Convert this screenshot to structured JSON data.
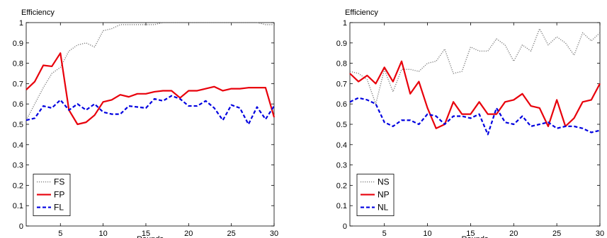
{
  "chart_data": [
    {
      "type": "line",
      "ylabel": "Efficiency",
      "xlabel": "Rounds",
      "xlim": [
        1,
        30
      ],
      "ylim": [
        0,
        1
      ],
      "xticks": [
        5,
        10,
        15,
        20,
        25,
        30
      ],
      "yticks": [
        0,
        0.1,
        0.2,
        0.3,
        0.4,
        0.5,
        0.6,
        0.7,
        0.8,
        0.9,
        1
      ],
      "grid": false,
      "legend": "bottom-left",
      "x": [
        1,
        2,
        3,
        4,
        5,
        6,
        7,
        8,
        9,
        10,
        11,
        12,
        13,
        14,
        15,
        16,
        17,
        18,
        19,
        20,
        21,
        22,
        23,
        24,
        25,
        26,
        27,
        28,
        29,
        30
      ],
      "series": [
        {
          "name": "FS",
          "style": "dotted",
          "color": "#808080",
          "values": [
            0.52,
            0.6,
            0.68,
            0.75,
            0.78,
            0.86,
            0.89,
            0.9,
            0.88,
            0.96,
            0.97,
            0.99,
            0.99,
            0.99,
            0.99,
            0.99,
            1.0,
            1.0,
            1.0,
            1.0,
            1.0,
            1.0,
            1.0,
            1.0,
            1.0,
            1.0,
            1.0,
            1.0,
            0.99,
            0.99
          ]
        },
        {
          "name": "FP",
          "style": "solid",
          "color": "#e8000b",
          "values": [
            0.67,
            0.71,
            0.79,
            0.785,
            0.85,
            0.57,
            0.5,
            0.51,
            0.545,
            0.61,
            0.62,
            0.645,
            0.635,
            0.65,
            0.65,
            0.66,
            0.665,
            0.665,
            0.63,
            0.665,
            0.665,
            0.675,
            0.685,
            0.665,
            0.675,
            0.675,
            0.68,
            0.68,
            0.68,
            0.535
          ]
        },
        {
          "name": "FL",
          "style": "dashed",
          "color": "#0000e0",
          "values": [
            0.52,
            0.53,
            0.59,
            0.58,
            0.62,
            0.57,
            0.6,
            0.57,
            0.6,
            0.56,
            0.55,
            0.55,
            0.59,
            0.585,
            0.58,
            0.625,
            0.615,
            0.64,
            0.625,
            0.59,
            0.59,
            0.615,
            0.58,
            0.52,
            0.595,
            0.58,
            0.5,
            0.585,
            0.525,
            0.59
          ]
        }
      ]
    },
    {
      "type": "line",
      "ylabel": "Efficiency",
      "xlabel": "Rounds",
      "xlim": [
        1,
        30
      ],
      "ylim": [
        0,
        1
      ],
      "xticks": [
        5,
        10,
        15,
        20,
        25,
        30
      ],
      "yticks": [
        0,
        0.1,
        0.2,
        0.3,
        0.4,
        0.5,
        0.6,
        0.7,
        0.8,
        0.9,
        1
      ],
      "grid": false,
      "legend": "bottom-left",
      "x": [
        1,
        2,
        3,
        4,
        5,
        6,
        7,
        8,
        9,
        10,
        11,
        12,
        13,
        14,
        15,
        16,
        17,
        18,
        19,
        20,
        21,
        22,
        23,
        24,
        25,
        26,
        27,
        28,
        29,
        30
      ],
      "series": [
        {
          "name": "NS",
          "style": "dotted",
          "color": "#808080",
          "values": [
            0.76,
            0.75,
            0.72,
            0.6,
            0.77,
            0.66,
            0.77,
            0.77,
            0.76,
            0.8,
            0.81,
            0.87,
            0.75,
            0.76,
            0.88,
            0.86,
            0.86,
            0.92,
            0.89,
            0.81,
            0.89,
            0.86,
            0.97,
            0.89,
            0.93,
            0.9,
            0.84,
            0.95,
            0.91,
            0.95
          ]
        },
        {
          "name": "NP",
          "style": "solid",
          "color": "#e8000b",
          "values": [
            0.75,
            0.71,
            0.74,
            0.7,
            0.78,
            0.71,
            0.81,
            0.65,
            0.71,
            0.58,
            0.48,
            0.5,
            0.61,
            0.55,
            0.55,
            0.61,
            0.55,
            0.55,
            0.61,
            0.62,
            0.65,
            0.59,
            0.58,
            0.49,
            0.62,
            0.49,
            0.53,
            0.61,
            0.62,
            0.7
          ]
        },
        {
          "name": "NL",
          "style": "dashed",
          "color": "#0000e0",
          "values": [
            0.61,
            0.63,
            0.62,
            0.6,
            0.51,
            0.49,
            0.52,
            0.52,
            0.5,
            0.55,
            0.54,
            0.5,
            0.54,
            0.54,
            0.53,
            0.55,
            0.45,
            0.58,
            0.51,
            0.5,
            0.54,
            0.49,
            0.5,
            0.51,
            0.48,
            0.49,
            0.49,
            0.48,
            0.46,
            0.47
          ]
        }
      ]
    }
  ]
}
